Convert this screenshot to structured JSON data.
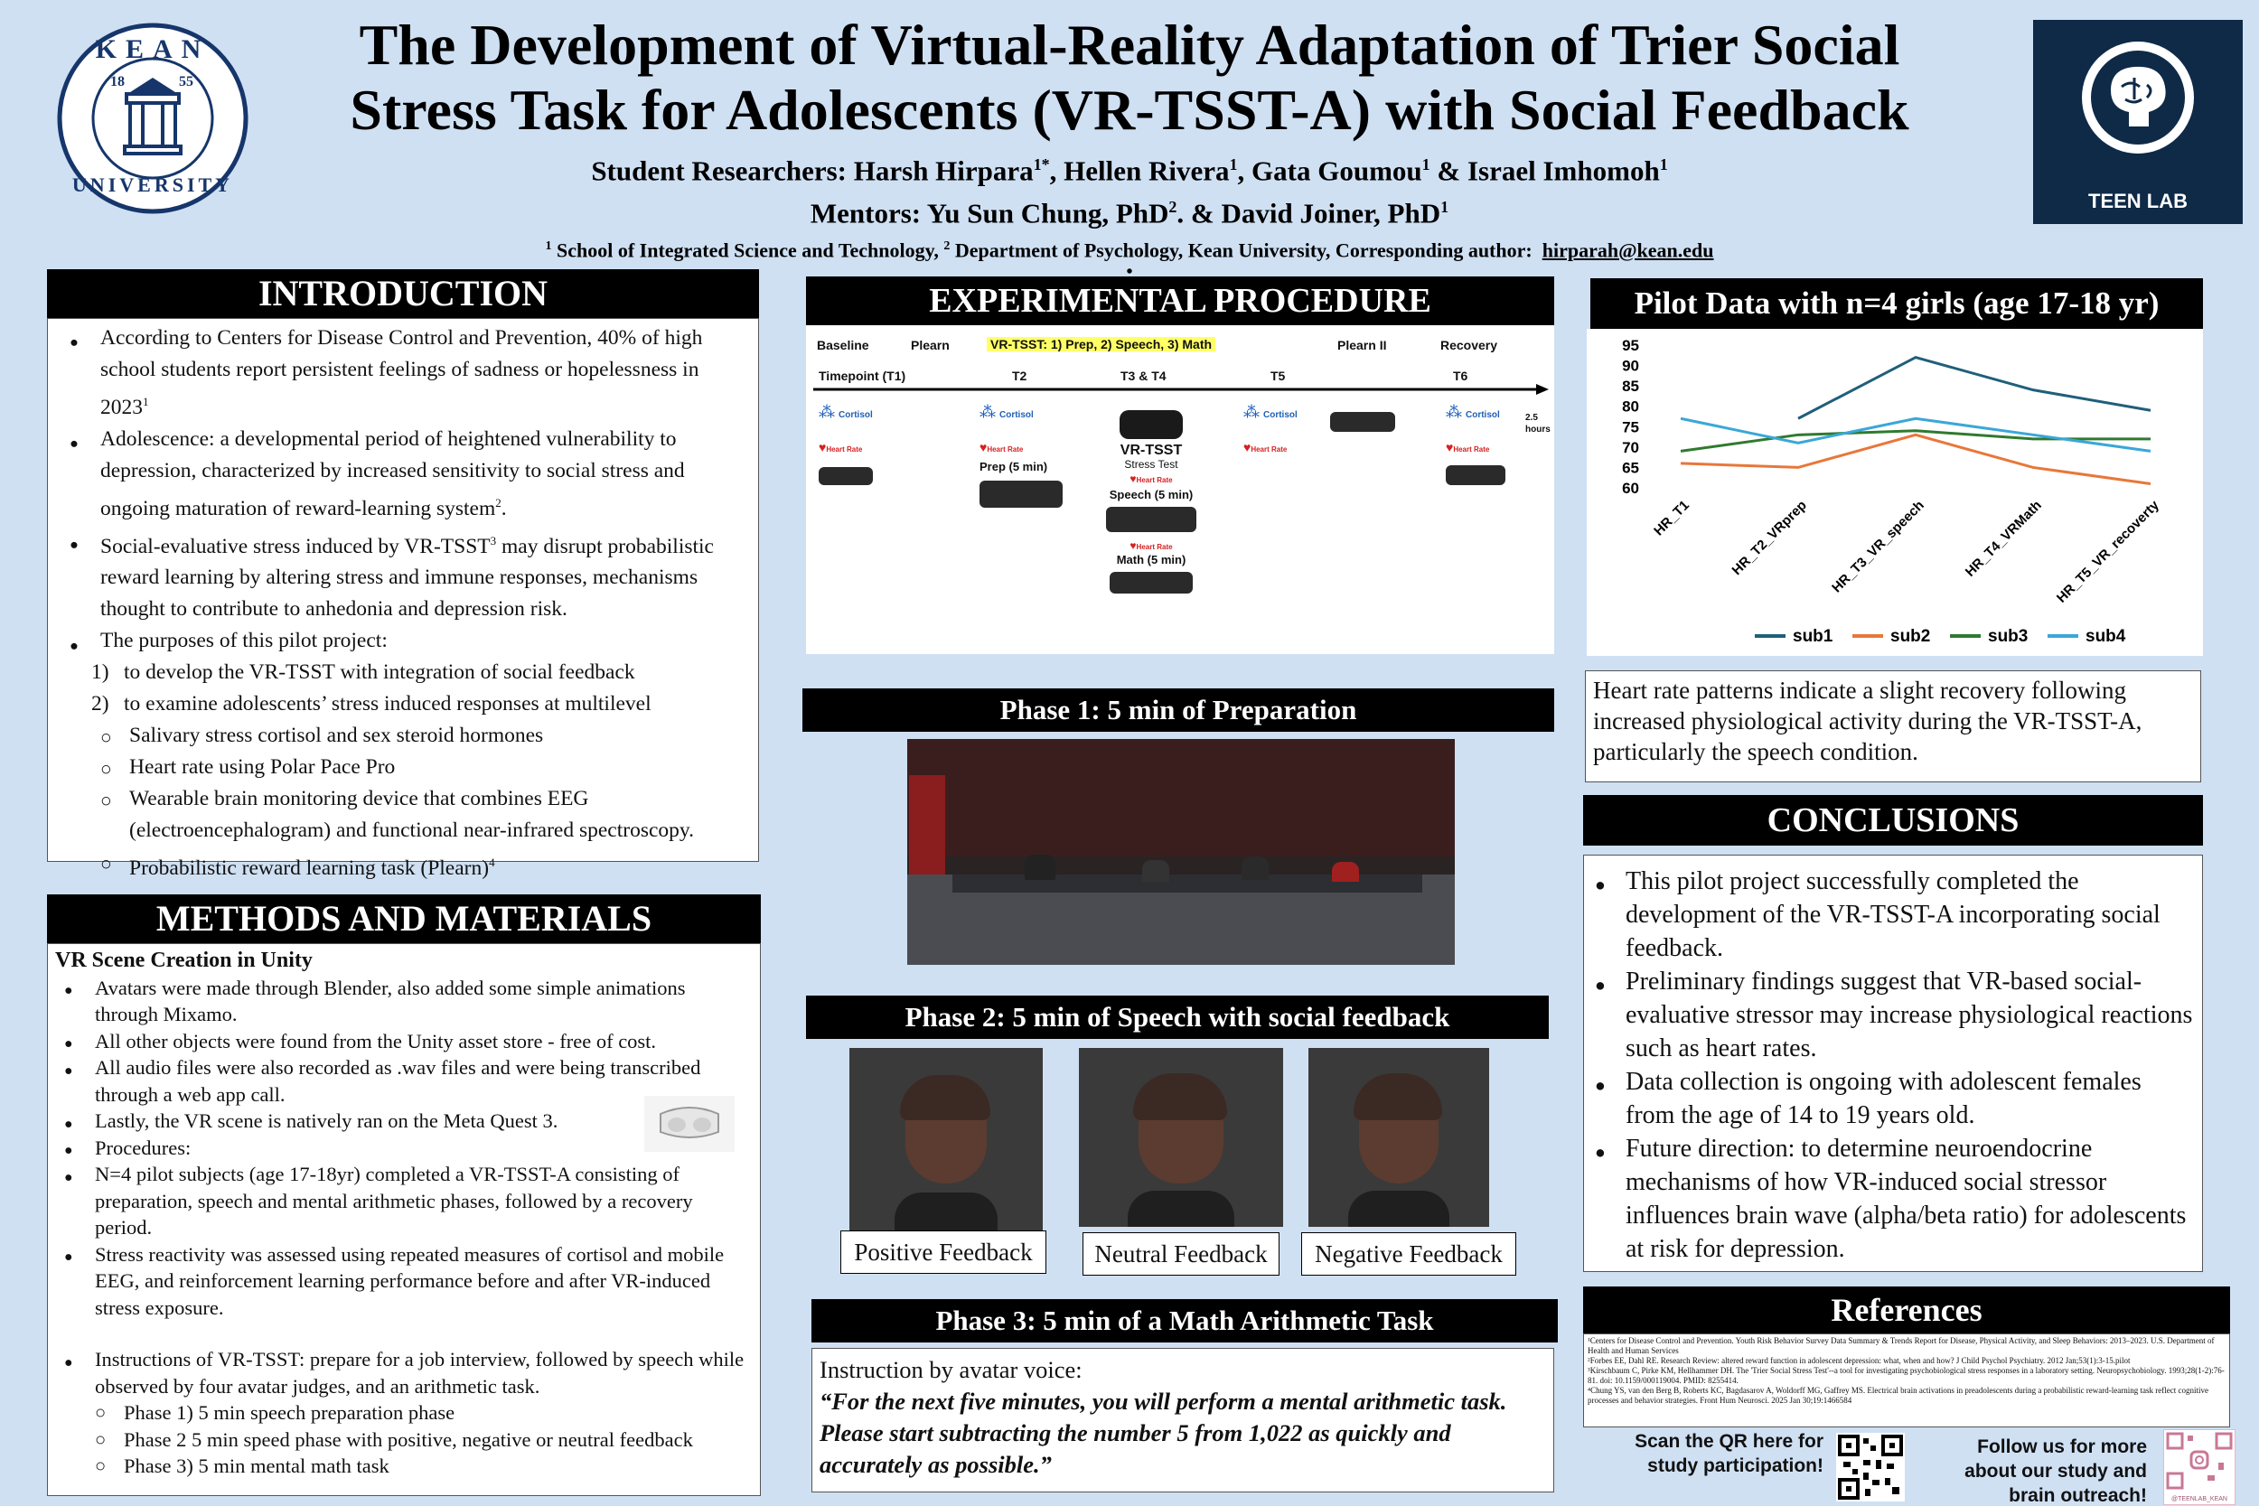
{
  "header": {
    "title_line1": "The Development of Virtual-Reality Adaptation of Trier Social",
    "title_line2": "Stress Task for Adolescents (VR-TSST-A) with Social Feedback",
    "students_prefix": "Student Researchers: Harsh Hirpara",
    "students_rest": "Hellen Rivera",
    "student3": "Gata Goumou",
    "student4": "Israel Imhomoh",
    "mentors": "Mentors: Yu Sun Chung, PhD",
    "mentor2": "David Joiner, PhD",
    "affil1": "School of Integrated Science and Technology,",
    "affil2": "Department of Psychology, Kean University, Corresponding author:",
    "email": "hirparah@kean.edu",
    "dot": "•",
    "vr_small": "VR"
  },
  "logos": {
    "kean_top": "KEAN",
    "kean_bottom": "UNIVERSITY",
    "kean_year_l": "18",
    "kean_year_r": "55",
    "teen_lab": "TEEN LAB"
  },
  "introduction": {
    "heading": "INTRODUCTION",
    "b1": "According to Centers for Disease Control and Prevention, 40% of high school students report persistent feelings of sadness or hopelessness in 2023",
    "b1_sup": "1",
    "b2": "Adolescence: a developmental period of heightened vulnerability to depression, characterized by increased sensitivity to social stress and ongoing maturation of reward-learning system",
    "b2_sup": "2",
    "b3a": "Social-evaluative stress induced by VR-TSST",
    "b3_sup": "3",
    "b3b": " may disrupt probabilistic reward learning by altering stress and immune responses, mechanisms thought to contribute to anhedonia and depression risk.",
    "b4": "The purposes of this pilot project:",
    "n1": "to develop the VR-TSST with integration of social feedback",
    "n2": "to examine adolescents’ stress induced responses at multilevel",
    "c1": "Salivary stress cortisol and sex steroid hormones",
    "c2": "Heart rate using Polar Pace Pro",
    "c3": "Wearable brain monitoring device that combines EEG (electroencephalogram) and functional near-infrared spectroscopy.",
    "c4": "Probabilistic reward learning task (Plearn)",
    "c4_sup": "4"
  },
  "methods": {
    "heading": "METHODS AND MATERIALS",
    "sub": "VR Scene Creation in Unity",
    "b1": "Avatars were made through Blender, also added some simple animations through Mixamo.",
    "b2": "All other objects were found from the Unity asset store - free of cost.",
    "b3": "All audio files were also recorded as .wav files and were being transcribed through a web app call.",
    "b4": "Lastly, the VR scene is natively ran on the Meta Quest 3.",
    "b5": "Procedures:",
    "b6": "N=4 pilot subjects (age 17-18yr) completed a VR-TSST-A consisting of preparation, speech and mental arithmetic phases, followed by a recovery period.",
    "b7": "Stress reactivity was assessed using repeated measures of cortisol and mobile EEG, and reinforcement learning performance before and after VR-induced stress exposure.",
    "b8": "Instructions of VR-TSST: prepare for a job interview, followed by speech while observed by four avatar judges, and an arithmetic task.",
    "p1": "Phase 1) 5 min speech preparation phase",
    "p2": "Phase 2 5 min speed phase with positive, negative or neutral feedback",
    "p3": "Phase 3) 5 min mental math task"
  },
  "experimental": {
    "heading": "EXPERIMENTAL PROCEDURE",
    "baseline": "Baseline",
    "plearn": "Plearn",
    "vrtsst": "VR-TSST: 1) Prep, 2) Speech, 3) Math",
    "plearn2": "Plearn II",
    "recovery": "Recovery",
    "t1": "Timepoint (T1)",
    "t2": "T2",
    "t34": "T3 & T4",
    "t5": "T5",
    "t6": "T6",
    "hours": "2.5 hours",
    "cortisol": "Cortisol",
    "heart_rate": "Heart Rate",
    "vr_tsst": "VR-TSST",
    "stress_test": "Stress Test",
    "prep": "Prep (5 min)",
    "speech": "Speech (5 min)",
    "math": "Math (5 min)"
  },
  "phases": {
    "p1": "Phase 1: 5 min of Preparation",
    "p2": "Phase 2: 5 min of Speech with social feedback",
    "p3": "Phase 3: 5 min of a Math Arithmetic Task",
    "fb_pos": "Positive Feedback",
    "fb_neu": "Neutral Feedback",
    "fb_neg": "Negative Feedback",
    "instr_label": "Instruction by avatar voice:",
    "instr_quote": "“For the next five minutes, you will perform a mental arithmetic task. Please start subtracting the number 5 from 1,022 as quickly and accurately as possible.”"
  },
  "pilot": {
    "heading": "Pilot Data with n=4 girls (age 17-18 yr)",
    "caption": "Heart rate patterns indicate a slight recovery following increased physiological activity during the VR-TSST-A, particularly the speech condition."
  },
  "chart_data": {
    "type": "line",
    "categories": [
      "HR_T1",
      "HR_T2_VRprep",
      "HR_T3_VR_speech",
      "HR_T4_VRMath",
      "HR_T5_VR_recoverty"
    ],
    "ylim": [
      60,
      95
    ],
    "yticks": [
      60,
      65,
      70,
      75,
      80,
      85,
      90,
      95
    ],
    "series": [
      {
        "name": "sub1",
        "color": "#1f5f7a",
        "values": [
          null,
          77,
          92,
          84,
          79
        ]
      },
      {
        "name": "sub2",
        "color": "#e8773a",
        "values": [
          66,
          65,
          73,
          65,
          61
        ]
      },
      {
        "name": "sub3",
        "color": "#2f7a2f",
        "values": [
          69,
          73,
          74,
          72,
          72
        ]
      },
      {
        "name": "sub4",
        "color": "#3aa7d8",
        "values": [
          77,
          71,
          77,
          73,
          69
        ]
      }
    ],
    "legend": "bottom"
  },
  "conclusions": {
    "heading": "CONCLUSIONS",
    "b1": "This pilot project successfully completed the development of the VR-TSST-A incorporating social feedback.",
    "b2": "Preliminary findings suggest that VR-based social-evaluative stressor may increase physiological reactions such as heart rates.",
    "b3": "Data collection is ongoing with adolescent females from the age of 14 to 19 years old.",
    "b4": "Future direction: to determine neuroendocrine mechanisms of how VR-induced social stressor influences brain wave (alpha/beta ratio) for adolescents at risk for depression."
  },
  "references": {
    "heading": "References",
    "r1": "¹Centers for Disease Control and Prevention. Youth Risk Behavior Survey Data Summary & Trends Report for Disease, Physical Activity, and Sleep Behaviors: 2013–2023. U.S. Department of Health and Human Services",
    "r2": "²Forbes EE, Dahl RE. Research Review: altered reward function in adolescent depression: what, when and how? J Child Psychol Psychiatry. 2012 Jan;53(1):3-15.pilot",
    "r3": "³Kirschbaum C, Pirke KM, Hellhammer DH. The 'Trier Social Stress Test'--a tool for investigating psychobiological stress responses in a laboratory setting. Neuropsychobiology. 1993;28(1-2):76-81. doi: 10.1159/000119004. PMID: 8255414.",
    "r4": "⁴Chung YS, van den Berg B, Roberts KC, Bagdasarov A, Woldorff MG, Gaffrey MS. Electrical brain activations in preadolescents during a probabilistic reward-learning task reflect cognitive processes and behavior strategies. Front Hum Neurosci. 2025 Jan 30;19:1466584"
  },
  "footer": {
    "qr_text": "Scan the QR here for study participation!",
    "follow": "Follow us for more about our study and brain outreach!",
    "insta": "@TEENLAB_KEAN"
  }
}
